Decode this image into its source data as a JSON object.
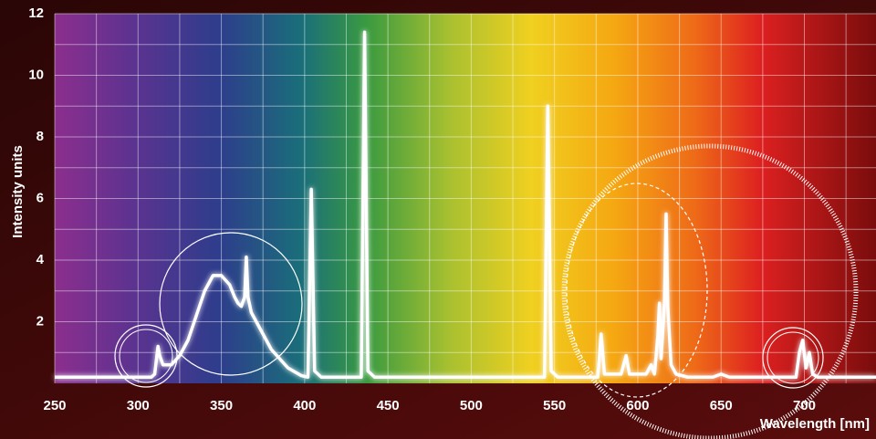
{
  "chart_data": {
    "type": "line",
    "x_label": "Wavelength [nm]",
    "y_label": "Intensity units",
    "xlim": [
      250,
      743
    ],
    "ylim": [
      0,
      12
    ],
    "xticks": [
      250,
      300,
      350,
      400,
      450,
      500,
      550,
      600,
      650,
      700
    ],
    "yticks": [
      2,
      4,
      6,
      8,
      10,
      12
    ],
    "xgrid": [
      250,
      275,
      300,
      325,
      350,
      375,
      400,
      425,
      450,
      475,
      500,
      525,
      550,
      575,
      600,
      625,
      650,
      675,
      700,
      725
    ],
    "ygrid": [
      1,
      2,
      3,
      4,
      5,
      6,
      7,
      8,
      9,
      10,
      11,
      12
    ],
    "grid": true,
    "series": [
      {
        "color": "#ffffff",
        "x": [
          250,
          308,
          310,
          312,
          313,
          315,
          320,
          325,
          330,
          335,
          340,
          345,
          350,
          355,
          358,
          360,
          362,
          364,
          365,
          366,
          368,
          372,
          380,
          390,
          398,
          402,
          404,
          406,
          410,
          434,
          436,
          438,
          442,
          544,
          546,
          548,
          552,
          576,
          578,
          580,
          590,
          593,
          595,
          605,
          608,
          610,
          612,
          613,
          614,
          616,
          617,
          618,
          620,
          623,
          630,
          645,
          650,
          655,
          695,
          697,
          699,
          701,
          703,
          705,
          708,
          743
        ],
        "values": [
          0.2,
          0.2,
          0.3,
          1.2,
          0.9,
          0.6,
          0.6,
          0.9,
          1.4,
          2.2,
          3.0,
          3.5,
          3.5,
          3.2,
          2.8,
          2.6,
          2.5,
          2.8,
          4.1,
          2.8,
          2.3,
          1.9,
          1.1,
          0.5,
          0.25,
          0.2,
          6.3,
          0.4,
          0.2,
          0.2,
          11.4,
          0.4,
          0.2,
          0.2,
          9.0,
          0.4,
          0.2,
          0.2,
          1.6,
          0.3,
          0.3,
          0.9,
          0.3,
          0.3,
          0.6,
          0.3,
          1.5,
          2.6,
          0.8,
          2.6,
          5.5,
          2.5,
          0.6,
          0.3,
          0.2,
          0.2,
          0.3,
          0.2,
          0.2,
          1.0,
          1.4,
          0.5,
          1.0,
          0.3,
          0.2,
          0.2
        ]
      }
    ]
  }
}
